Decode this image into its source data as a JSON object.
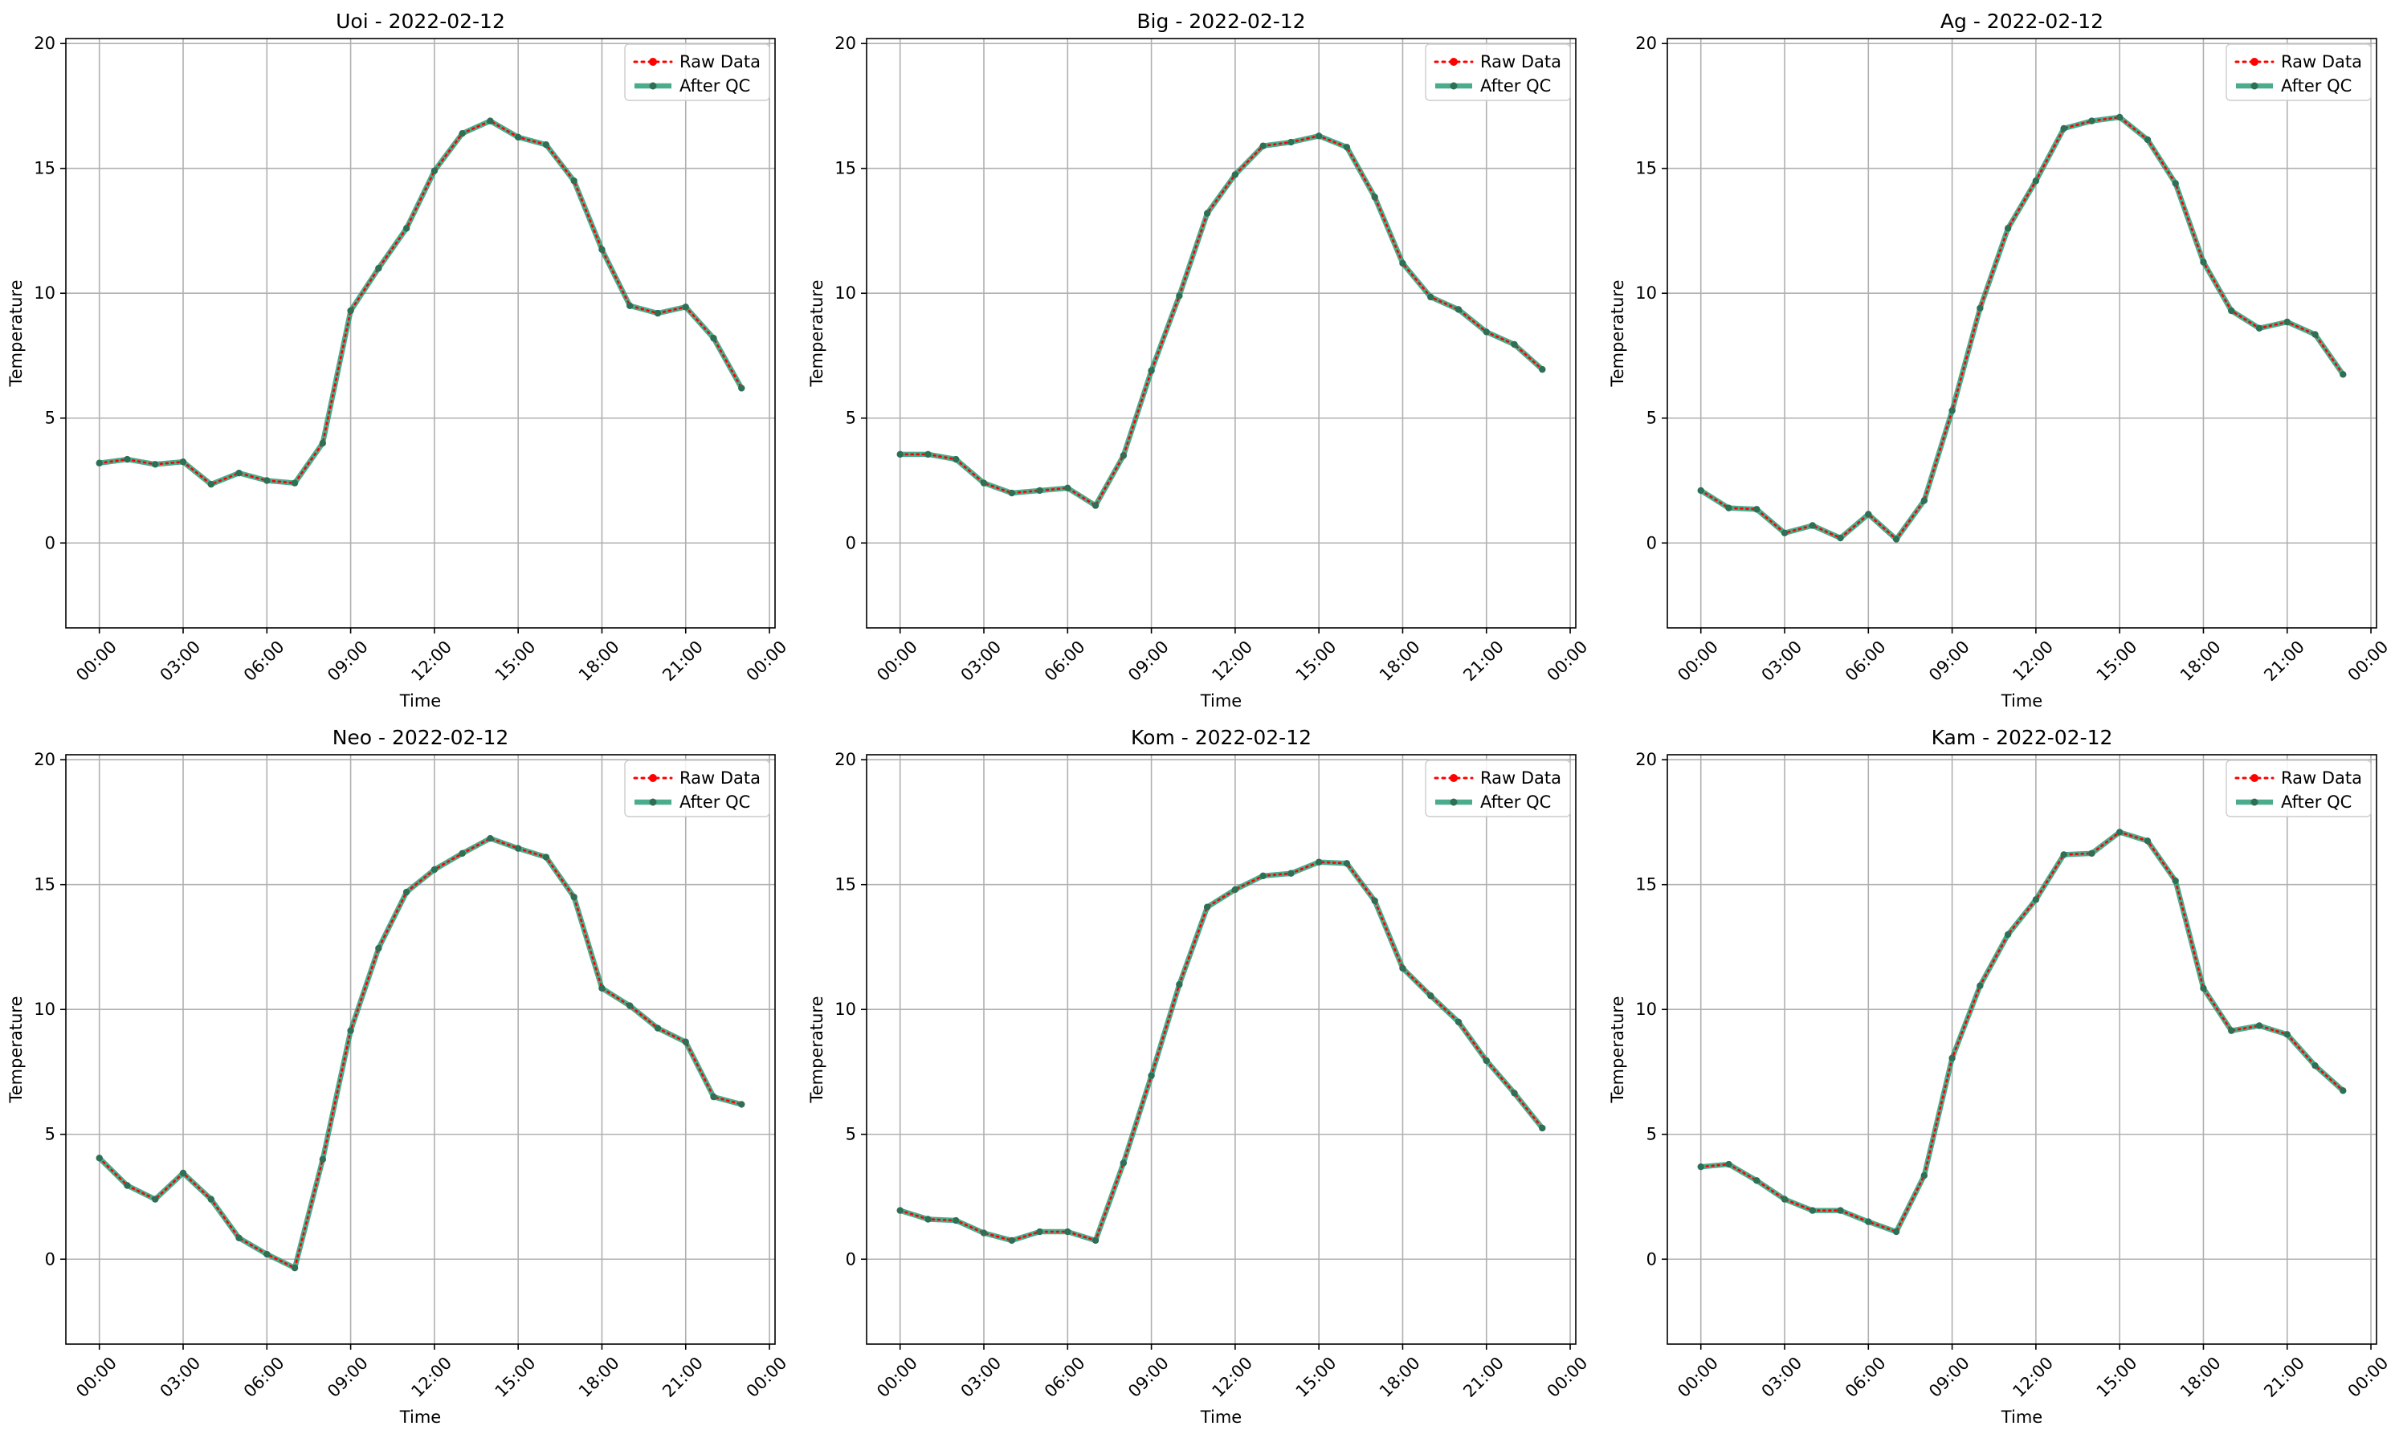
{
  "chart_data": [
    {
      "type": "line",
      "title": "Uoi - 2022-02-12",
      "xlabel": "Time",
      "ylabel": "Temperature",
      "xlim_hours": [
        -1.2,
        24.2
      ],
      "ylim": [
        -3.4,
        20.2
      ],
      "yticks": [
        0,
        5,
        10,
        15,
        20
      ],
      "xticks": [
        "00:00",
        "03:00",
        "06:00",
        "09:00",
        "12:00",
        "15:00",
        "18:00",
        "21:00",
        "00:00"
      ],
      "grid": true,
      "legend": "top-right",
      "x": [
        "00:00",
        "01:00",
        "02:00",
        "03:00",
        "04:00",
        "05:00",
        "06:00",
        "07:00",
        "08:00",
        "09:00",
        "10:00",
        "11:00",
        "12:00",
        "13:00",
        "14:00",
        "15:00",
        "16:00",
        "17:00",
        "18:00",
        "19:00",
        "20:00",
        "21:00",
        "22:00",
        "23:00"
      ],
      "series": [
        {
          "name": "Raw Data",
          "values": [
            3.2,
            3.35,
            3.15,
            3.25,
            2.35,
            2.8,
            2.5,
            2.4,
            4.0,
            9.3,
            11.0,
            12.6,
            14.9,
            16.4,
            16.9,
            16.25,
            15.95,
            14.5,
            11.75,
            9.5,
            9.2,
            9.45,
            8.2,
            6.2
          ]
        },
        {
          "name": "After QC",
          "values": [
            3.2,
            3.35,
            3.15,
            3.25,
            2.35,
            2.8,
            2.5,
            2.4,
            4.0,
            9.3,
            11.0,
            12.6,
            14.9,
            16.4,
            16.9,
            16.25,
            15.95,
            14.5,
            11.75,
            9.5,
            9.2,
            9.45,
            8.2,
            6.2
          ]
        }
      ]
    },
    {
      "type": "line",
      "title": "Big - 2022-02-12",
      "xlabel": "Time",
      "ylabel": "Temperature",
      "xlim_hours": [
        -1.2,
        24.2
      ],
      "ylim": [
        -3.4,
        20.2
      ],
      "yticks": [
        0,
        5,
        10,
        15,
        20
      ],
      "xticks": [
        "00:00",
        "03:00",
        "06:00",
        "09:00",
        "12:00",
        "15:00",
        "18:00",
        "21:00",
        "00:00"
      ],
      "grid": true,
      "legend": "top-right",
      "x": [
        "00:00",
        "01:00",
        "02:00",
        "03:00",
        "04:00",
        "05:00",
        "06:00",
        "07:00",
        "08:00",
        "09:00",
        "10:00",
        "11:00",
        "12:00",
        "13:00",
        "14:00",
        "15:00",
        "16:00",
        "17:00",
        "18:00",
        "19:00",
        "20:00",
        "21:00",
        "22:00",
        "23:00"
      ],
      "series": [
        {
          "name": "Raw Data",
          "values": [
            3.55,
            3.55,
            3.35,
            2.4,
            2.0,
            2.1,
            2.2,
            1.5,
            3.5,
            6.9,
            9.9,
            13.2,
            14.75,
            15.9,
            16.05,
            16.3,
            15.85,
            13.85,
            11.2,
            9.85,
            9.35,
            8.45,
            7.95,
            6.95
          ]
        },
        {
          "name": "After QC",
          "values": [
            3.55,
            3.55,
            3.35,
            2.4,
            2.0,
            2.1,
            2.2,
            1.5,
            3.5,
            6.9,
            9.9,
            13.2,
            14.75,
            15.9,
            16.05,
            16.3,
            15.85,
            13.85,
            11.2,
            9.85,
            9.35,
            8.45,
            7.95,
            6.95
          ]
        }
      ]
    },
    {
      "type": "line",
      "title": "Ag - 2022-02-12",
      "xlabel": "Time",
      "ylabel": "Temperature",
      "xlim_hours": [
        -1.2,
        24.2
      ],
      "ylim": [
        -3.4,
        20.2
      ],
      "yticks": [
        0,
        5,
        10,
        15,
        20
      ],
      "xticks": [
        "00:00",
        "03:00",
        "06:00",
        "09:00",
        "12:00",
        "15:00",
        "18:00",
        "21:00",
        "00:00"
      ],
      "grid": true,
      "legend": "top-right",
      "x": [
        "00:00",
        "01:00",
        "02:00",
        "03:00",
        "04:00",
        "05:00",
        "06:00",
        "07:00",
        "08:00",
        "09:00",
        "10:00",
        "11:00",
        "12:00",
        "13:00",
        "14:00",
        "15:00",
        "16:00",
        "17:00",
        "18:00",
        "19:00",
        "20:00",
        "21:00",
        "22:00",
        "23:00"
      ],
      "series": [
        {
          "name": "Raw Data",
          "values": [
            2.1,
            1.4,
            1.35,
            0.4,
            0.7,
            0.2,
            1.15,
            0.15,
            1.7,
            5.3,
            9.4,
            12.6,
            14.5,
            16.6,
            16.9,
            17.05,
            16.15,
            14.4,
            11.25,
            9.3,
            8.6,
            8.85,
            8.35,
            6.75
          ]
        },
        {
          "name": "After QC",
          "values": [
            2.1,
            1.4,
            1.35,
            0.4,
            0.7,
            0.2,
            1.15,
            0.15,
            1.7,
            5.3,
            9.4,
            12.6,
            14.5,
            16.6,
            16.9,
            17.05,
            16.15,
            14.4,
            11.25,
            9.3,
            8.6,
            8.85,
            8.35,
            6.75
          ]
        }
      ]
    },
    {
      "type": "line",
      "title": "Neo - 2022-02-12",
      "xlabel": "Time",
      "ylabel": "Temperature",
      "xlim_hours": [
        -1.2,
        24.2
      ],
      "ylim": [
        -3.4,
        20.2
      ],
      "yticks": [
        0,
        5,
        10,
        15,
        20
      ],
      "xticks": [
        "00:00",
        "03:00",
        "06:00",
        "09:00",
        "12:00",
        "15:00",
        "18:00",
        "21:00",
        "00:00"
      ],
      "grid": true,
      "legend": "top-right",
      "x": [
        "00:00",
        "01:00",
        "02:00",
        "03:00",
        "04:00",
        "05:00",
        "06:00",
        "07:00",
        "08:00",
        "09:00",
        "10:00",
        "11:00",
        "12:00",
        "13:00",
        "14:00",
        "15:00",
        "16:00",
        "17:00",
        "18:00",
        "19:00",
        "20:00",
        "21:00",
        "22:00",
        "23:00"
      ],
      "series": [
        {
          "name": "Raw Data",
          "values": [
            4.05,
            2.95,
            2.4,
            3.45,
            2.4,
            0.85,
            0.2,
            -0.35,
            4.0,
            9.15,
            12.45,
            14.7,
            15.6,
            16.25,
            16.85,
            16.45,
            16.1,
            14.5,
            10.85,
            10.15,
            9.25,
            8.7,
            6.5,
            6.2
          ]
        },
        {
          "name": "After QC",
          "values": [
            4.05,
            2.95,
            2.4,
            3.45,
            2.4,
            0.85,
            0.2,
            -0.35,
            4.0,
            9.15,
            12.45,
            14.7,
            15.6,
            16.25,
            16.85,
            16.45,
            16.1,
            14.5,
            10.85,
            10.15,
            9.25,
            8.7,
            6.5,
            6.2
          ]
        }
      ]
    },
    {
      "type": "line",
      "title": "Kom - 2022-02-12",
      "xlabel": "Time",
      "ylabel": "Temperature",
      "xlim_hours": [
        -1.2,
        24.2
      ],
      "ylim": [
        -3.4,
        20.2
      ],
      "yticks": [
        0,
        5,
        10,
        15,
        20
      ],
      "xticks": [
        "00:00",
        "03:00",
        "06:00",
        "09:00",
        "12:00",
        "15:00",
        "18:00",
        "21:00",
        "00:00"
      ],
      "grid": true,
      "legend": "top-right",
      "x": [
        "00:00",
        "01:00",
        "02:00",
        "03:00",
        "04:00",
        "05:00",
        "06:00",
        "07:00",
        "08:00",
        "09:00",
        "10:00",
        "11:00",
        "12:00",
        "13:00",
        "14:00",
        "15:00",
        "16:00",
        "17:00",
        "18:00",
        "19:00",
        "20:00",
        "21:00",
        "22:00",
        "23:00"
      ],
      "series": [
        {
          "name": "Raw Data",
          "values": [
            1.95,
            1.6,
            1.55,
            1.05,
            0.75,
            1.1,
            1.1,
            0.75,
            3.85,
            7.35,
            11.0,
            14.1,
            14.8,
            15.35,
            15.45,
            15.9,
            15.85,
            14.35,
            11.65,
            10.55,
            9.5,
            7.95,
            6.65,
            5.25
          ]
        },
        {
          "name": "After QC",
          "values": [
            1.95,
            1.6,
            1.55,
            1.05,
            0.75,
            1.1,
            1.1,
            0.75,
            3.85,
            7.35,
            11.0,
            14.1,
            14.8,
            15.35,
            15.45,
            15.9,
            15.85,
            14.35,
            11.65,
            10.55,
            9.5,
            7.95,
            6.65,
            5.25
          ]
        }
      ]
    },
    {
      "type": "line",
      "title": "Kam - 2022-02-12",
      "xlabel": "Time",
      "ylabel": "Temperature",
      "xlim_hours": [
        -1.2,
        24.2
      ],
      "ylim": [
        -3.4,
        20.2
      ],
      "yticks": [
        0,
        5,
        10,
        15,
        20
      ],
      "xticks": [
        "00:00",
        "03:00",
        "06:00",
        "09:00",
        "12:00",
        "15:00",
        "18:00",
        "21:00",
        "00:00"
      ],
      "grid": true,
      "legend": "top-right",
      "x": [
        "00:00",
        "01:00",
        "02:00",
        "03:00",
        "04:00",
        "05:00",
        "06:00",
        "07:00",
        "08:00",
        "09:00",
        "10:00",
        "11:00",
        "12:00",
        "13:00",
        "14:00",
        "15:00",
        "16:00",
        "17:00",
        "18:00",
        "19:00",
        "20:00",
        "21:00",
        "22:00",
        "23:00"
      ],
      "series": [
        {
          "name": "Raw Data",
          "values": [
            3.7,
            3.8,
            3.15,
            2.4,
            1.95,
            1.95,
            1.5,
            1.1,
            3.35,
            8.05,
            10.95,
            13.0,
            14.4,
            16.2,
            16.25,
            17.1,
            16.75,
            15.15,
            10.85,
            9.15,
            9.35,
            9.0,
            7.75,
            6.75
          ]
        },
        {
          "name": "After QC",
          "values": [
            3.7,
            3.8,
            3.15,
            2.4,
            1.95,
            1.95,
            1.5,
            1.1,
            3.35,
            8.05,
            10.95,
            13.0,
            14.4,
            16.2,
            16.25,
            17.1,
            16.75,
            15.15,
            10.85,
            9.15,
            9.35,
            9.0,
            7.75,
            6.75
          ]
        }
      ]
    }
  ],
  "colors": {
    "raw": "#ff0000",
    "qc": "#2a9d78",
    "grid": "#b0b0b0",
    "axis": "#000000"
  }
}
